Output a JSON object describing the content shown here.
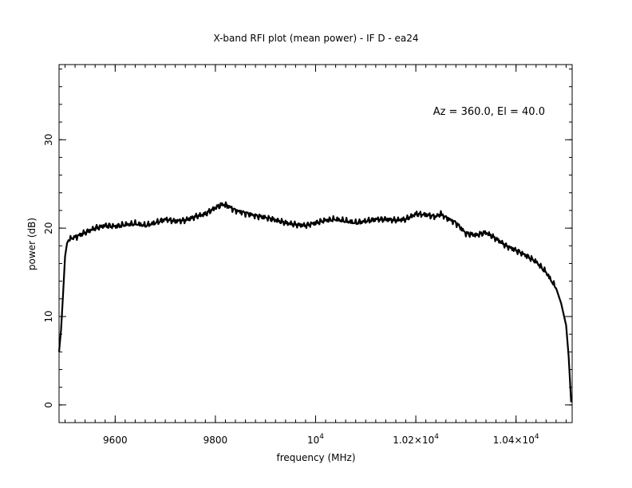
{
  "chart_data": {
    "type": "line",
    "title": "X-band RFI plot (mean power) - IF D - ea24",
    "xlabel": "frequency (MHz)",
    "ylabel": "power (dB)",
    "annotation": "Az = 360.0, El = 40.0",
    "xlim": [
      9488,
      10512
    ],
    "ylim": [
      -2,
      38.5
    ],
    "x_ticks": [
      {
        "value": 9600,
        "label": "9600"
      },
      {
        "value": 9800,
        "label": "9800"
      },
      {
        "value": 10000,
        "label": "10",
        "exp": "4"
      },
      {
        "value": 10200,
        "label": "1.02×10",
        "exp": "4"
      },
      {
        "value": 10400,
        "label": "1.04×10",
        "exp": "4"
      }
    ],
    "y_ticks": [
      {
        "value": 0,
        "label": "0"
      },
      {
        "value": 10,
        "label": "10"
      },
      {
        "value": 20,
        "label": "20"
      },
      {
        "value": 30,
        "label": "30"
      }
    ],
    "x_minor_step": 20,
    "y_minor_step": 2,
    "grid": false,
    "line_color": "#000000",
    "series": [
      {
        "x": [
          9488,
          9492,
          9496,
          9500,
          9504,
          9508,
          9515,
          9525,
          9540,
          9560,
          9580,
          9600,
          9620,
          9640,
          9660,
          9680,
          9700,
          9720,
          9740,
          9760,
          9780,
          9800,
          9815,
          9825,
          9840,
          9860,
          9880,
          9900,
          9920,
          9940,
          9960,
          9980,
          10000,
          10020,
          10040,
          10060,
          10080,
          10100,
          10120,
          10140,
          10160,
          10180,
          10200,
          10220,
          10240,
          10250,
          10260,
          10280,
          10300,
          10320,
          10340,
          10360,
          10380,
          10400,
          10420,
          10440,
          10460,
          10480,
          10490,
          10500,
          10505,
          10510
        ],
        "y": [
          6.0,
          8.5,
          12.5,
          16.8,
          18.3,
          18.7,
          18.9,
          19.1,
          19.5,
          20.0,
          20.3,
          20.2,
          20.4,
          20.5,
          20.3,
          20.6,
          21.0,
          20.8,
          20.9,
          21.3,
          21.6,
          22.3,
          22.7,
          22.5,
          22.0,
          21.7,
          21.4,
          21.2,
          20.9,
          20.6,
          20.4,
          20.3,
          20.6,
          20.9,
          21.0,
          20.8,
          20.6,
          20.8,
          21.0,
          21.0,
          20.9,
          21.0,
          21.6,
          21.5,
          21.3,
          21.6,
          21.2,
          20.6,
          19.4,
          19.2,
          19.5,
          18.8,
          18.0,
          17.5,
          16.9,
          16.2,
          15.0,
          13.2,
          11.5,
          9.0,
          5.5,
          0.3
        ]
      }
    ]
  }
}
